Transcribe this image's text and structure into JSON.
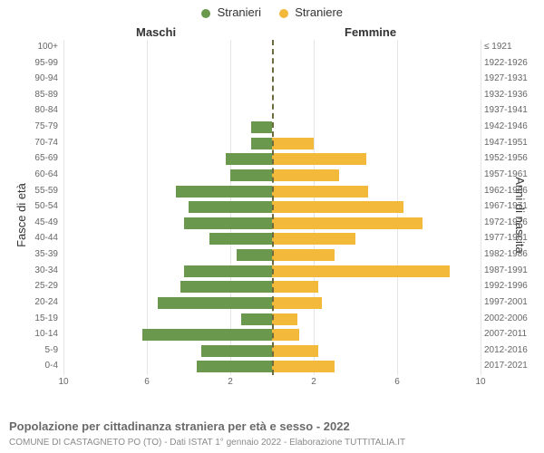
{
  "chart": {
    "type": "population-pyramid",
    "legend": [
      {
        "label": "Stranieri",
        "color": "#6a994e"
      },
      {
        "label": "Straniere",
        "color": "#f2b93b"
      }
    ],
    "header_male": "Maschi",
    "header_female": "Femmine",
    "axis_left_title": "Fasce di età",
    "axis_right_title": "Anni di nascita",
    "x_max": 10,
    "x_ticks_left": [
      10,
      6,
      2
    ],
    "x_ticks_right": [
      2,
      6,
      10
    ],
    "grid_color": "#e6e6e6",
    "center_line_color": "#6b6b3d",
    "background_color": "#ffffff",
    "male_color": "#6a994e",
    "female_color": "#f2b93b",
    "label_fontsize": 10,
    "title_fontsize": 13,
    "rows": [
      {
        "age": "100+",
        "birth": "≤ 1921",
        "m": 0,
        "f": 0
      },
      {
        "age": "95-99",
        "birth": "1922-1926",
        "m": 0,
        "f": 0
      },
      {
        "age": "90-94",
        "birth": "1927-1931",
        "m": 0,
        "f": 0
      },
      {
        "age": "85-89",
        "birth": "1932-1936",
        "m": 0,
        "f": 0
      },
      {
        "age": "80-84",
        "birth": "1937-1941",
        "m": 0,
        "f": 0
      },
      {
        "age": "75-79",
        "birth": "1942-1946",
        "m": 1.0,
        "f": 0
      },
      {
        "age": "70-74",
        "birth": "1947-1951",
        "m": 1.0,
        "f": 2.0
      },
      {
        "age": "65-69",
        "birth": "1952-1956",
        "m": 2.2,
        "f": 4.5
      },
      {
        "age": "60-64",
        "birth": "1957-1961",
        "m": 2.0,
        "f": 3.2
      },
      {
        "age": "55-59",
        "birth": "1962-1966",
        "m": 4.6,
        "f": 4.6
      },
      {
        "age": "50-54",
        "birth": "1967-1971",
        "m": 4.0,
        "f": 6.3
      },
      {
        "age": "45-49",
        "birth": "1972-1976",
        "m": 4.2,
        "f": 7.2
      },
      {
        "age": "40-44",
        "birth": "1977-1981",
        "m": 3.0,
        "f": 4.0
      },
      {
        "age": "35-39",
        "birth": "1982-1986",
        "m": 1.7,
        "f": 3.0
      },
      {
        "age": "30-34",
        "birth": "1987-1991",
        "m": 4.2,
        "f": 8.5
      },
      {
        "age": "25-29",
        "birth": "1992-1996",
        "m": 4.4,
        "f": 2.2
      },
      {
        "age": "20-24",
        "birth": "1997-2001",
        "m": 5.5,
        "f": 2.4
      },
      {
        "age": "15-19",
        "birth": "2002-2006",
        "m": 1.5,
        "f": 1.2
      },
      {
        "age": "10-14",
        "birth": "2007-2011",
        "m": 6.2,
        "f": 1.3
      },
      {
        "age": "5-9",
        "birth": "2012-2016",
        "m": 3.4,
        "f": 2.2
      },
      {
        "age": "0-4",
        "birth": "2017-2021",
        "m": 3.6,
        "f": 3.0
      }
    ],
    "caption": "Popolazione per cittadinanza straniera per età e sesso - 2022",
    "subcaption": "COMUNE DI CASTAGNETO PO (TO) - Dati ISTAT 1° gennaio 2022 - Elaborazione TUTTITALIA.IT"
  }
}
